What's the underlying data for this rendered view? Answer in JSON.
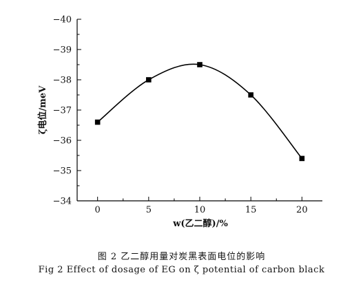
{
  "chart_data": {
    "type": "line",
    "xlabel": "w(乙二醇)/%",
    "ylabel": "ζ电位/meV",
    "xlim": [
      -2,
      22
    ],
    "ylim": [
      -34,
      -40
    ],
    "xticks": [
      "0",
      "5",
      "10",
      "15",
      "20"
    ],
    "yticks": [
      "−34",
      "−35",
      "−36",
      "−37",
      "−38",
      "−39",
      "−40"
    ],
    "grid": false,
    "series": [
      {
        "x": [
          0,
          5,
          10,
          15,
          20
        ],
        "y": [
          -36.6,
          -38.0,
          -38.5,
          -37.5,
          -35.4
        ],
        "marker": "square",
        "curve": "smooth"
      }
    ]
  },
  "caption": {
    "zh": "图 2  乙二醇用量对炭黑表面电位的影响",
    "en": "Fig 2   Effect of dosage of EG on ζ potential of carbon black"
  }
}
